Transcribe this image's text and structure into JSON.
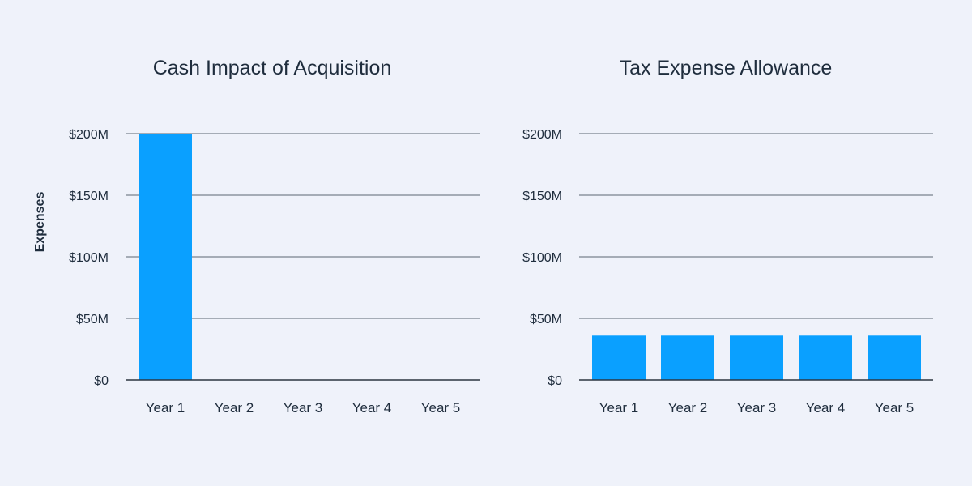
{
  "colors": {
    "background": "#eff2fa",
    "bar": "#0aa0ff",
    "text": "#1f2d3d",
    "grid": "#5b6573",
    "axis": "#2c3540"
  },
  "chart_data": [
    {
      "type": "bar",
      "title": "Cash Impact of Acquisition",
      "ylabel": "Expenses",
      "xlabel": "",
      "categories": [
        "Year 1",
        "Year 2",
        "Year 3",
        "Year 4",
        "Year 5"
      ],
      "values": [
        200,
        0,
        0,
        0,
        0
      ],
      "unit": "$M",
      "ylim": [
        0,
        200
      ],
      "yticks": [
        0,
        50,
        100,
        150,
        200
      ],
      "ytick_labels": [
        "$0",
        "$50M",
        "$100M",
        "$150M",
        "$200M"
      ],
      "grid": true
    },
    {
      "type": "bar",
      "title": "Tax Expense Allowance",
      "ylabel": "",
      "xlabel": "",
      "categories": [
        "Year 1",
        "Year 2",
        "Year 3",
        "Year 4",
        "Year 5"
      ],
      "values": [
        36,
        36,
        36,
        36,
        36
      ],
      "unit": "$M",
      "ylim": [
        0,
        200
      ],
      "yticks": [
        0,
        50,
        100,
        150,
        200
      ],
      "ytick_labels": [
        "$0",
        "$50M",
        "$100M",
        "$150M",
        "$200M"
      ],
      "grid": true
    }
  ]
}
